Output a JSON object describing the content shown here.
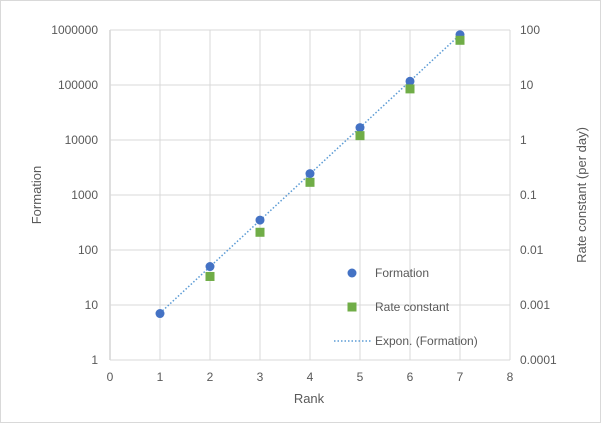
{
  "chart_data": {
    "type": "scatter",
    "xlabel": "Rank",
    "ylabel": "Formation",
    "y2label": "Rate constant (per day)",
    "xlim": [
      0,
      8
    ],
    "xticks": [
      0,
      1,
      2,
      3,
      4,
      5,
      6,
      7,
      8
    ],
    "ylim": [
      1,
      1000000
    ],
    "yscale": "log",
    "yticks": [
      "1",
      "10",
      "100",
      "1000",
      "10000",
      "100000",
      "1000000"
    ],
    "y2lim": [
      0.0001,
      100
    ],
    "y2scale": "log",
    "y2ticks": [
      "0.0001",
      "0.001",
      "0.01",
      "0.1",
      "1",
      "10",
      "100"
    ],
    "grid": true,
    "legend_position": "bottom-right inside",
    "series": [
      {
        "name": "Formation",
        "axis": "left",
        "marker": "circle",
        "color": "#4472C4",
        "x": [
          1,
          2,
          3,
          4,
          5,
          6,
          7
        ],
        "y": [
          7,
          50,
          350,
          2450,
          16800,
          117000,
          820000
        ]
      },
      {
        "name": "Rate constant",
        "axis": "right",
        "marker": "square",
        "color": "#70AD47",
        "x": [
          2,
          3,
          4,
          5,
          6,
          7
        ],
        "y": [
          0.0033,
          0.021,
          0.17,
          1.2,
          8.5,
          65
        ]
      }
    ],
    "trendline": {
      "name": "Expon. (Formation)",
      "type": "exponential",
      "of": "Formation",
      "style": "dotted",
      "color": "#5B9BD5",
      "x_range": [
        1,
        7
      ]
    }
  }
}
